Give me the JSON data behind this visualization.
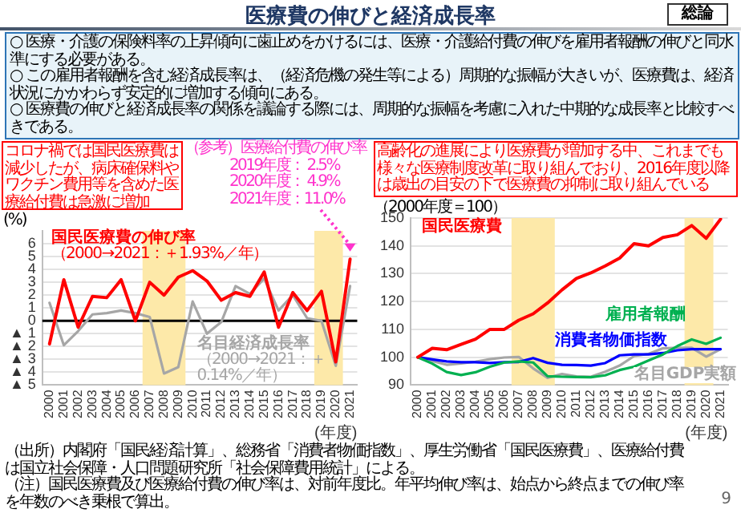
{
  "chart_data": [
    {
      "type": "line",
      "title": "医療費の伸びと経済成長率",
      "ylabel": "(%)",
      "xlabel": "(年度)",
      "categories": [
        "2000",
        "2001",
        "2002",
        "2003",
        "2004",
        "2005",
        "2006",
        "2007",
        "2008",
        "2009",
        "2010",
        "2011",
        "2012",
        "2013",
        "2014",
        "2015",
        "2016",
        "2017",
        "2018",
        "2019",
        "2020",
        "2021"
      ],
      "series": [
        {
          "name": "国民医療費の伸び率",
          "color": "#ff0000",
          "values": [
            -1.8,
            3.2,
            -0.5,
            1.9,
            1.8,
            3.2,
            0.0,
            3.0,
            2.0,
            3.4,
            3.9,
            3.1,
            1.6,
            2.2,
            1.9,
            3.8,
            -0.5,
            2.2,
            0.8,
            2.3,
            -3.2,
            4.8
          ]
        },
        {
          "name": "名目経済成長率",
          "color": "#a6a6a6",
          "values": [
            1.4,
            -1.9,
            -0.8,
            0.5,
            0.6,
            0.8,
            0.6,
            0.3,
            -4.1,
            -3.6,
            1.5,
            -1.0,
            -0.1,
            2.7,
            2.1,
            3.3,
            0.8,
            2.0,
            0.2,
            0.0,
            -3.5,
            2.7
          ]
        }
      ],
      "ylim": [
        -5,
        7
      ],
      "yticks": [
        {
          "value": -5,
          "label": "▲ 5"
        },
        {
          "value": -4,
          "label": "▲ 4"
        },
        {
          "value": -3,
          "label": "▲ 3"
        },
        {
          "value": -2,
          "label": "▲ 2"
        },
        {
          "value": -1,
          "label": "▲ 1"
        },
        0,
        1,
        2,
        3,
        4,
        5,
        6
      ],
      "grid": "y",
      "ref_lines": [
        {
          "axis": "y",
          "value": 0,
          "color": "#000000"
        }
      ],
      "bands": [
        {
          "axis": "x",
          "from": "2007",
          "to": "2009",
          "color": "#fde9a9"
        },
        {
          "axis": "x",
          "from": "2019",
          "to": "2020",
          "color": "#fde9a9"
        }
      ],
      "annotations": [
        "総論",
        "○ 医療・介護の保険料率の上昇傾向に歯止めをかけるには、医療・介護給付費の伸びを雇用者報酬の伸びと同水準にする必要がある。",
        "○ この雇用者報酬を含む経済成長率は、（経済危機の発生等による）周期的な振幅が大きいが、医療費は、経済状況にかかわらず安定的に増加する傾向にある。",
        "○ 医療費の伸びと経済成長率の関係を議論する際には、周期的な振幅を考慮に入れた中期的な成長率と比較すべきである。",
        "（2000→2021：＋1.93%／年）",
        "（2000→2021：＋0.14%／年）",
        "コロナ禍では国民医療費は減少したが、病床確保料やワクチン費用等を含めた医療給付費は急激に増加",
        "（参考）医療給付費の伸び率",
        "2019年度： 2.5%",
        "2020年度： 4.9%",
        "2021年度：11.0%",
        "（出所）内閣府「国民経済計算」、総務省「消費者物価指数」、厚生労働省「国民医療費」、医療給付費は国立社会保障・人口問題研究所「社会保障費用統計」による。",
        "（注）国民医療費及び医療給付費の伸び率は、対前年度比。年平均伸び率は、始点から終点までの伸び率を年数のべき乗根で算出。",
        "9"
      ]
    },
    {
      "type": "line",
      "ylabel": "（2000年度＝100）",
      "xlabel": "(年度)",
      "categories": [
        "2000",
        "2001",
        "2002",
        "2003",
        "2004",
        "2005",
        "2006",
        "2007",
        "2008",
        "2009",
        "2010",
        "2011",
        "2012",
        "2013",
        "2014",
        "2015",
        "2016",
        "2017",
        "2018",
        "2019",
        "2020",
        "2021"
      ],
      "series": [
        {
          "name": "国民医療費",
          "color": "#ff0000",
          "values": [
            100,
            103.2,
            102.7,
            104.6,
            106.5,
            110.0,
            110.0,
            113.3,
            115.6,
            119.5,
            124.2,
            128.3,
            130.3,
            132.8,
            135.6,
            140.8,
            140.0,
            143.0,
            144.0,
            147.3,
            142.7,
            149.6
          ]
        },
        {
          "name": "雇用者報酬",
          "color": "#00b050",
          "values": [
            100,
            97.7,
            94.7,
            93.6,
            94.6,
            96.6,
            98.1,
            98.5,
            98.1,
            93.2,
            93.0,
            92.9,
            92.8,
            93.5,
            95.4,
            96.6,
            98.8,
            101.0,
            104.0,
            106.4,
            104.8,
            107.0
          ]
        },
        {
          "name": "消費者物価指数",
          "color": "#0000ff",
          "values": [
            100,
            99.2,
            98.5,
            98.2,
            98.2,
            97.9,
            98.2,
            98.3,
            99.7,
            98.0,
            97.3,
            97.2,
            97.0,
            97.9,
            100.7,
            101.0,
            101.0,
            101.5,
            102.5,
            102.9,
            102.9,
            102.9
          ]
        },
        {
          "name": "名目GDP実額",
          "color": "#a6a6a6",
          "values": [
            100,
            98.6,
            97.3,
            97.8,
            98.4,
            99.3,
            99.9,
            100.1,
            96.0,
            92.6,
            94.0,
            93.1,
            93.0,
            94.8,
            97.0,
            100.4,
            101.2,
            103.2,
            103.4,
            103.4,
            100.2,
            102.9
          ]
        }
      ],
      "ylim": [
        90,
        150
      ],
      "yticks": [
        90,
        100,
        110,
        120,
        130,
        140,
        150
      ],
      "grid": "y",
      "bands": [
        {
          "axis": "x",
          "from": "2007",
          "to": "2009",
          "color": "#fde9a9"
        },
        {
          "axis": "x",
          "from": "2019",
          "to": "2020",
          "color": "#fde9a9"
        }
      ],
      "annotations": [
        "高齢化の進展により医療費が増加する中、これまでも様々な医療制度改革に取り組んでおり、2016年度以降は歳出の目安の下で医療費の抑制に取り組んでいる"
      ]
    }
  ]
}
